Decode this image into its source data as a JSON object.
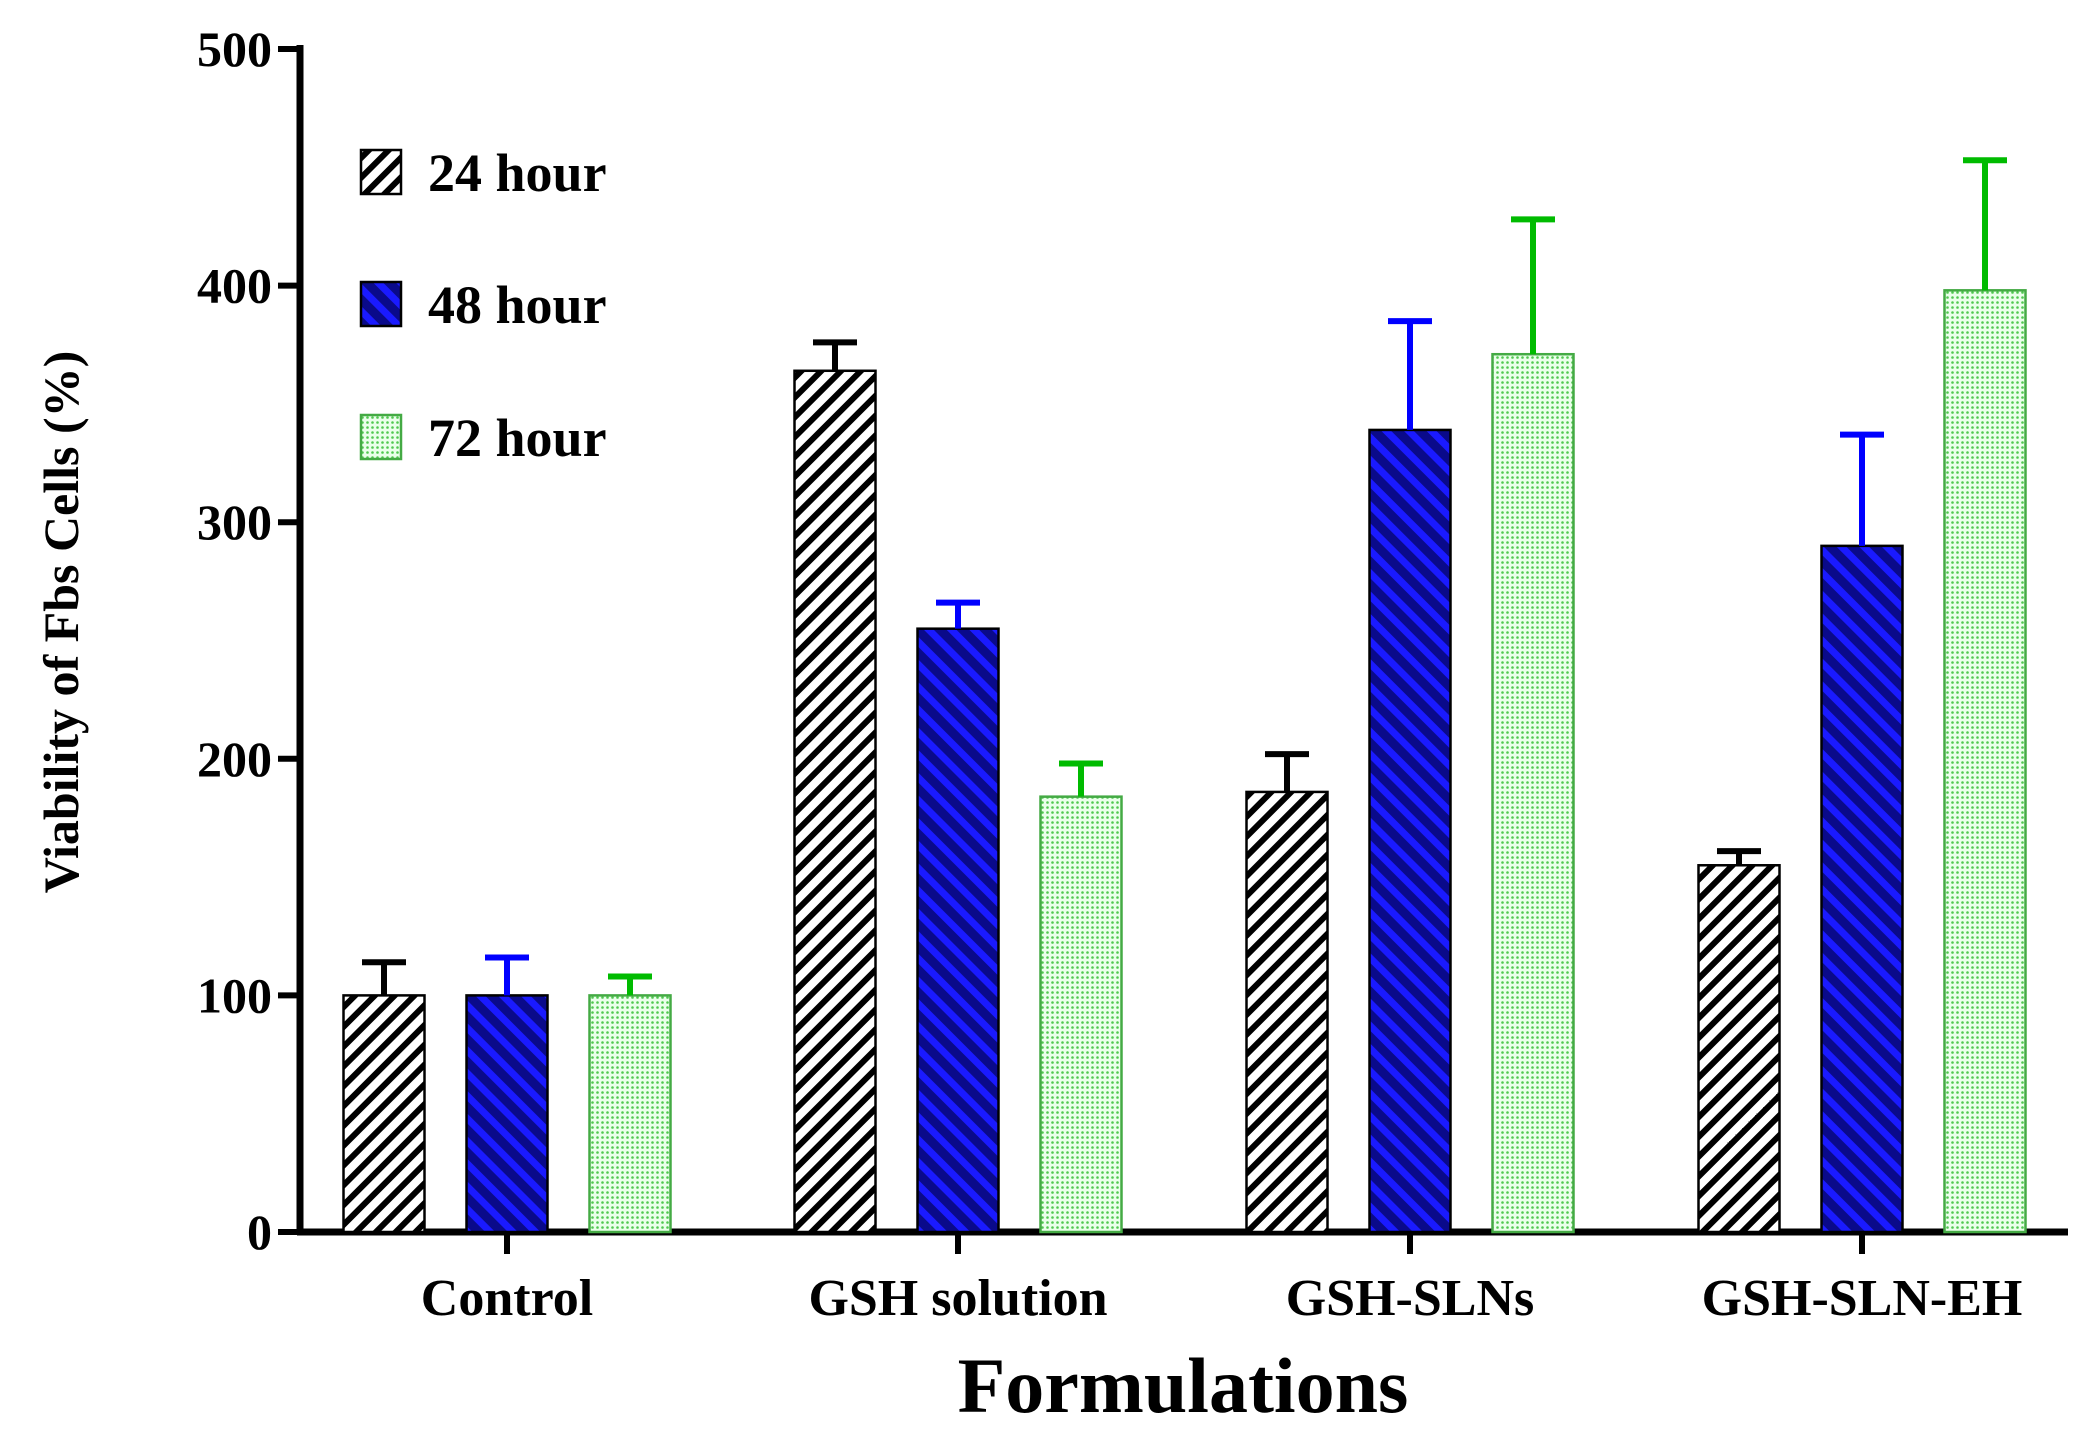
{
  "chart_data": {
    "type": "bar",
    "title": "",
    "xlabel": "Formulations",
    "ylabel": "Viability of Fbs Cells (%)",
    "ylim": [
      0,
      500
    ],
    "yticks": [
      "0",
      "100",
      "200",
      "300",
      "400",
      "500"
    ],
    "categories": [
      "Control",
      "GSH solution",
      "GSH-SLNs",
      "GSH-SLN-EH"
    ],
    "legend_position": "top-left",
    "series": [
      {
        "name": "24 hour",
        "values": [
          100,
          364,
          186,
          155
        ],
        "errors": [
          14,
          12,
          16,
          6
        ],
        "color": "#000000",
        "fill_style": "diagonal-hatch-black"
      },
      {
        "name": "48 hour",
        "values": [
          100,
          255,
          339,
          290
        ],
        "errors": [
          16,
          11,
          46,
          47
        ],
        "color": "#0000ff",
        "fill_style": "diagonal-hatch-blue"
      },
      {
        "name": "72 hour",
        "values": [
          100,
          184,
          371,
          398
        ],
        "errors": [
          8,
          14,
          57,
          55
        ],
        "color": "#00bb00",
        "fill_style": "dotted-green"
      }
    ]
  }
}
